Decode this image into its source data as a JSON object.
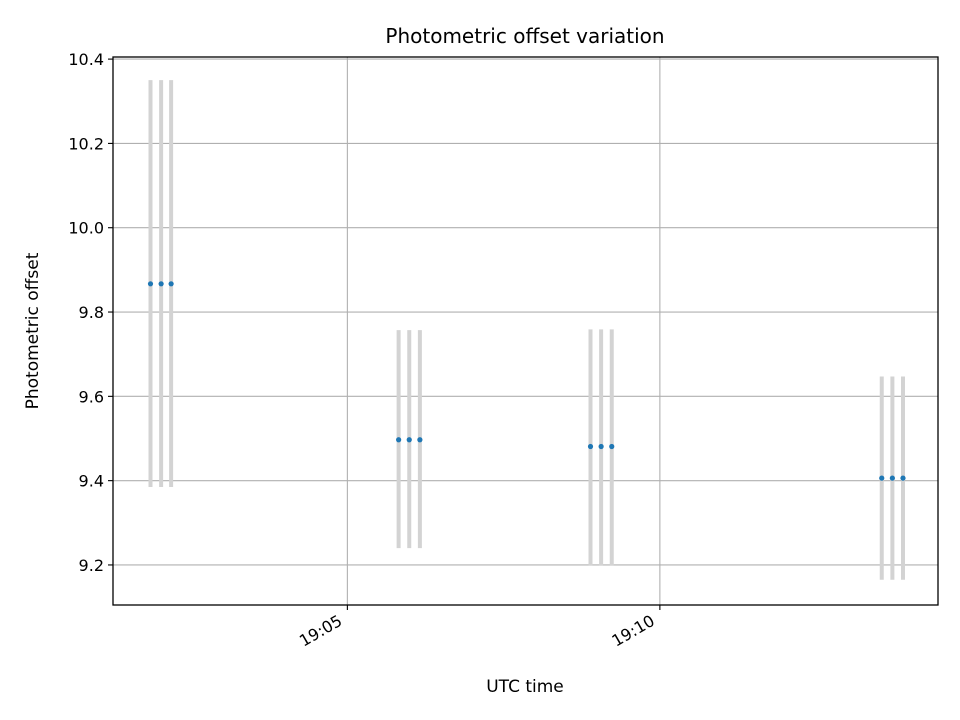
{
  "chart_data": {
    "type": "scatter",
    "title": "Photometric offset variation",
    "xlabel": "UTC time",
    "ylabel": "Photometric offset",
    "x_unit": "minutes after 19:00 UTC",
    "xlim": [
      1.25,
      14.45
    ],
    "ylim": [
      9.105,
      10.405
    ],
    "yticks": [
      9.2,
      9.4,
      9.6,
      9.8,
      10.0,
      10.2,
      10.4
    ],
    "ytick_labels": [
      "9.2",
      "9.4",
      "9.6",
      "9.8",
      "10.0",
      "10.2",
      "10.4"
    ],
    "xticks": [
      5,
      10
    ],
    "xtick_labels": [
      "19:05",
      "19:10"
    ],
    "grid": true,
    "marker_color": "#1f77b4",
    "errorbar_color": "#d3d3d3",
    "points": [
      {
        "x": 1.85,
        "y": 9.867,
        "yerr_low": 9.385,
        "yerr_high": 10.35
      },
      {
        "x": 2.02,
        "y": 9.867,
        "yerr_low": 9.385,
        "yerr_high": 10.35
      },
      {
        "x": 2.18,
        "y": 9.867,
        "yerr_low": 9.385,
        "yerr_high": 10.35
      },
      {
        "x": 5.82,
        "y": 9.497,
        "yerr_low": 9.24,
        "yerr_high": 9.757
      },
      {
        "x": 5.99,
        "y": 9.497,
        "yerr_low": 9.24,
        "yerr_high": 9.757
      },
      {
        "x": 6.16,
        "y": 9.497,
        "yerr_low": 9.24,
        "yerr_high": 9.757
      },
      {
        "x": 8.89,
        "y": 9.481,
        "yerr_low": 9.198,
        "yerr_high": 9.759
      },
      {
        "x": 9.06,
        "y": 9.481,
        "yerr_low": 9.198,
        "yerr_high": 9.759
      },
      {
        "x": 9.23,
        "y": 9.481,
        "yerr_low": 9.198,
        "yerr_high": 9.759
      },
      {
        "x": 13.55,
        "y": 9.406,
        "yerr_low": 9.165,
        "yerr_high": 9.647
      },
      {
        "x": 13.72,
        "y": 9.406,
        "yerr_low": 9.165,
        "yerr_high": 9.647
      },
      {
        "x": 13.89,
        "y": 9.406,
        "yerr_low": 9.165,
        "yerr_high": 9.647
      }
    ]
  }
}
